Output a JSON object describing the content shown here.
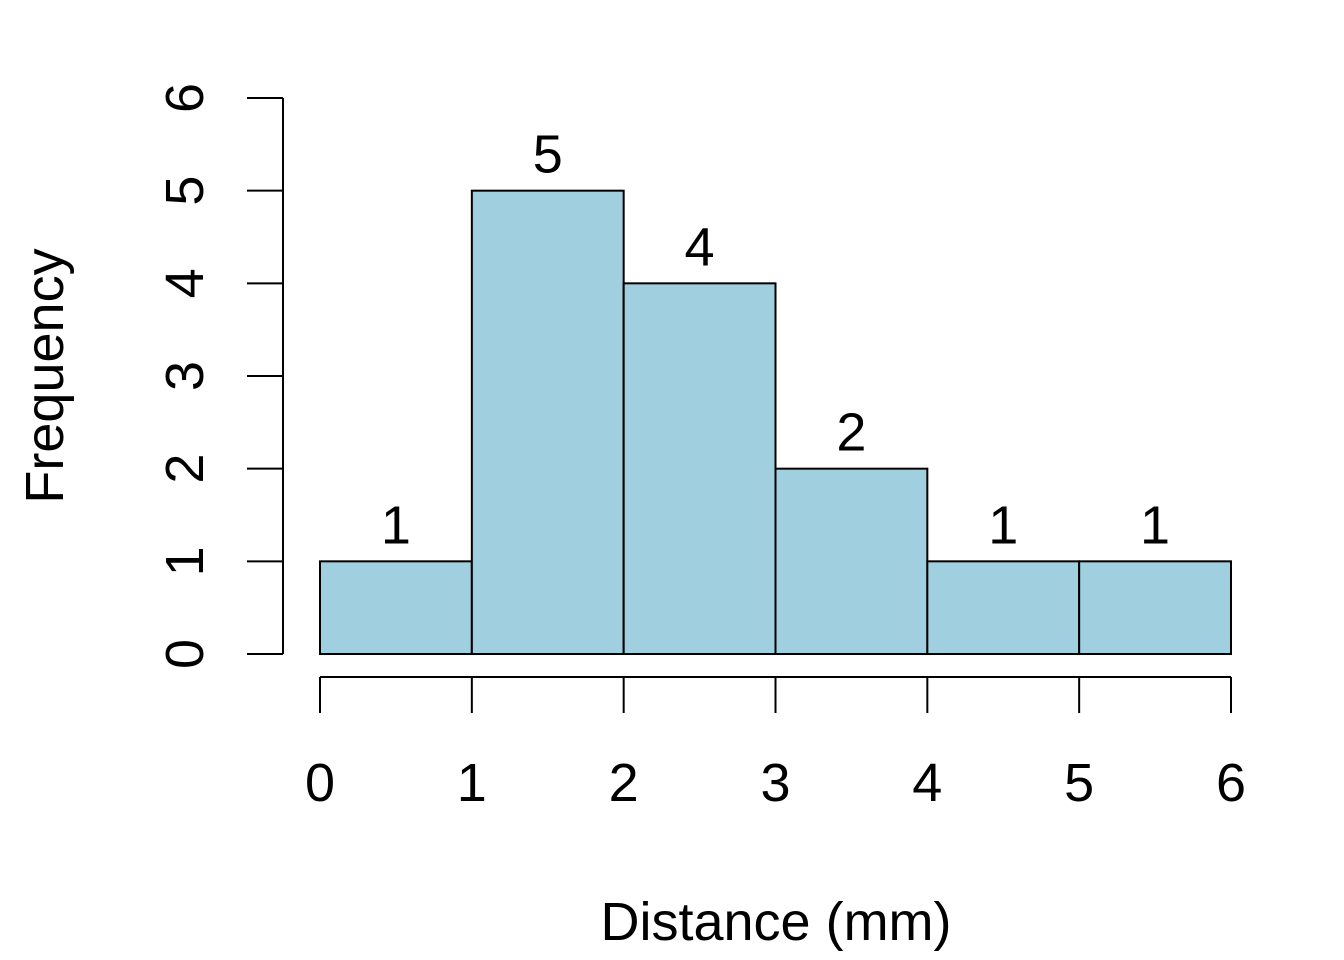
{
  "chart_data": {
    "type": "bar",
    "bins": [
      {
        "start": 0,
        "end": 1,
        "value": 1,
        "label": "1"
      },
      {
        "start": 1,
        "end": 2,
        "value": 5,
        "label": "5"
      },
      {
        "start": 2,
        "end": 3,
        "value": 4,
        "label": "4"
      },
      {
        "start": 3,
        "end": 4,
        "value": 2,
        "label": "2"
      },
      {
        "start": 4,
        "end": 5,
        "value": 1,
        "label": "1"
      },
      {
        "start": 5,
        "end": 6,
        "value": 1,
        "label": "1"
      }
    ],
    "xlabel": "Distance (mm)",
    "ylabel": "Frequency",
    "xlim": [
      0,
      6
    ],
    "ylim": [
      0,
      6
    ],
    "xticks": [
      "0",
      "1",
      "2",
      "3",
      "4",
      "5",
      "6"
    ],
    "yticks": [
      "0",
      "1",
      "2",
      "3",
      "4",
      "5",
      "6"
    ],
    "bar_color": "#a0cfe0",
    "grid": false
  }
}
